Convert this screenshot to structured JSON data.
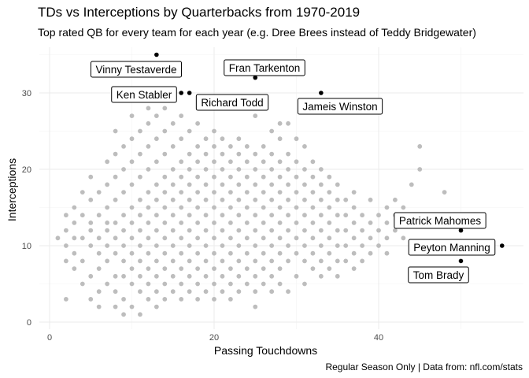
{
  "title": "TDs vs Interceptions by Quarterbacks from 1970-2019",
  "subtitle": "Top rated QB for every team for each year (e.g. Dree Brees instead of Teddy Bridgewater)",
  "caption": "Regular Season Only | Data from: nfl.com/stats",
  "chart_data": {
    "type": "scatter",
    "xlabel": "Passing Touchdowns",
    "ylabel": "Interceptions",
    "xlim": [
      -1,
      58
    ],
    "ylim": [
      -0.5,
      36.5
    ],
    "xticks": [
      0,
      20,
      40
    ],
    "yticks": [
      0,
      10,
      20,
      30
    ],
    "grid": true,
    "point_color": "#bdbdbd",
    "highlight_color": "#000000",
    "points": [
      [
        1,
        11
      ],
      [
        2,
        3
      ],
      [
        2,
        8
      ],
      [
        2,
        10
      ],
      [
        2,
        12
      ],
      [
        2,
        14
      ],
      [
        3,
        7
      ],
      [
        3,
        9
      ],
      [
        3,
        11
      ],
      [
        3,
        13
      ],
      [
        3,
        15
      ],
      [
        4,
        5
      ],
      [
        4,
        8
      ],
      [
        4,
        11
      ],
      [
        4,
        14
      ],
      [
        4,
        17
      ],
      [
        5,
        3
      ],
      [
        5,
        6
      ],
      [
        5,
        10
      ],
      [
        5,
        12
      ],
      [
        5,
        13
      ],
      [
        5,
        16
      ],
      [
        5,
        19
      ],
      [
        6,
        2
      ],
      [
        6,
        4
      ],
      [
        6,
        7
      ],
      [
        6,
        9
      ],
      [
        6,
        11
      ],
      [
        6,
        14
      ],
      [
        6,
        17
      ],
      [
        7,
        5
      ],
      [
        7,
        8
      ],
      [
        7,
        10
      ],
      [
        7,
        12
      ],
      [
        7,
        13
      ],
      [
        7,
        15
      ],
      [
        7,
        18
      ],
      [
        7,
        21
      ],
      [
        8,
        2
      ],
      [
        8,
        4
      ],
      [
        8,
        6
      ],
      [
        8,
        9
      ],
      [
        8,
        11
      ],
      [
        8,
        13
      ],
      [
        8,
        16
      ],
      [
        8,
        19
      ],
      [
        8,
        22
      ],
      [
        8,
        25
      ],
      [
        9,
        1
      ],
      [
        9,
        3
      ],
      [
        9,
        6
      ],
      [
        9,
        8
      ],
      [
        9,
        10
      ],
      [
        9,
        12
      ],
      [
        9,
        14
      ],
      [
        9,
        17
      ],
      [
        9,
        20
      ],
      [
        9,
        23
      ],
      [
        10,
        2
      ],
      [
        10,
        5
      ],
      [
        10,
        7
      ],
      [
        10,
        9
      ],
      [
        10,
        11
      ],
      [
        10,
        13
      ],
      [
        10,
        15
      ],
      [
        10,
        18
      ],
      [
        10,
        21
      ],
      [
        10,
        24
      ],
      [
        10,
        27
      ],
      [
        11,
        1
      ],
      [
        11,
        4
      ],
      [
        11,
        6
      ],
      [
        11,
        8
      ],
      [
        11,
        10
      ],
      [
        11,
        12
      ],
      [
        11,
        14
      ],
      [
        11,
        16
      ],
      [
        11,
        19
      ],
      [
        11,
        22
      ],
      [
        11,
        25
      ],
      [
        12,
        3
      ],
      [
        12,
        5
      ],
      [
        12,
        7
      ],
      [
        12,
        9
      ],
      [
        12,
        11
      ],
      [
        12,
        13
      ],
      [
        12,
        15
      ],
      [
        12,
        17
      ],
      [
        12,
        20
      ],
      [
        12,
        23
      ],
      [
        12,
        26
      ],
      [
        12,
        28
      ],
      [
        13,
        2
      ],
      [
        13,
        4
      ],
      [
        13,
        6
      ],
      [
        13,
        8
      ],
      [
        13,
        10
      ],
      [
        13,
        12
      ],
      [
        13,
        14
      ],
      [
        13,
        16
      ],
      [
        13,
        18
      ],
      [
        13,
        21
      ],
      [
        13,
        24
      ],
      [
        13,
        27
      ],
      [
        14,
        3
      ],
      [
        14,
        5
      ],
      [
        14,
        7
      ],
      [
        14,
        9
      ],
      [
        14,
        11
      ],
      [
        14,
        13
      ],
      [
        14,
        15
      ],
      [
        14,
        17
      ],
      [
        14,
        19
      ],
      [
        14,
        22
      ],
      [
        14,
        25
      ],
      [
        14,
        28
      ],
      [
        15,
        4
      ],
      [
        15,
        6
      ],
      [
        15,
        8
      ],
      [
        15,
        10
      ],
      [
        15,
        12
      ],
      [
        15,
        14
      ],
      [
        15,
        16
      ],
      [
        15,
        18
      ],
      [
        15,
        20
      ],
      [
        15,
        23
      ],
      [
        15,
        26
      ],
      [
        16,
        3
      ],
      [
        16,
        5
      ],
      [
        16,
        7
      ],
      [
        16,
        9
      ],
      [
        16,
        11
      ],
      [
        16,
        13
      ],
      [
        16,
        15
      ],
      [
        16,
        17
      ],
      [
        16,
        19
      ],
      [
        16,
        21
      ],
      [
        16,
        24
      ],
      [
        16,
        27
      ],
      [
        17,
        4
      ],
      [
        17,
        6
      ],
      [
        17,
        8
      ],
      [
        17,
        10
      ],
      [
        17,
        12
      ],
      [
        17,
        14
      ],
      [
        17,
        16
      ],
      [
        17,
        18
      ],
      [
        17,
        20
      ],
      [
        17,
        22
      ],
      [
        17,
        25
      ],
      [
        18,
        3
      ],
      [
        18,
        5
      ],
      [
        18,
        7
      ],
      [
        18,
        9
      ],
      [
        18,
        11
      ],
      [
        18,
        13
      ],
      [
        18,
        15
      ],
      [
        18,
        17
      ],
      [
        18,
        19
      ],
      [
        18,
        21
      ],
      [
        18,
        23
      ],
      [
        18,
        26
      ],
      [
        19,
        4
      ],
      [
        19,
        6
      ],
      [
        19,
        8
      ],
      [
        19,
        10
      ],
      [
        19,
        12
      ],
      [
        19,
        14
      ],
      [
        19,
        16
      ],
      [
        19,
        18
      ],
      [
        19,
        20
      ],
      [
        19,
        22
      ],
      [
        19,
        24
      ],
      [
        20,
        3
      ],
      [
        20,
        5
      ],
      [
        20,
        7
      ],
      [
        20,
        9
      ],
      [
        20,
        11
      ],
      [
        20,
        13
      ],
      [
        20,
        15
      ],
      [
        20,
        17
      ],
      [
        20,
        19
      ],
      [
        20,
        21
      ],
      [
        20,
        23
      ],
      [
        20,
        25
      ],
      [
        21,
        4
      ],
      [
        21,
        6
      ],
      [
        21,
        8
      ],
      [
        21,
        10
      ],
      [
        21,
        12
      ],
      [
        21,
        14
      ],
      [
        21,
        16
      ],
      [
        21,
        18
      ],
      [
        21,
        20
      ],
      [
        21,
        22
      ],
      [
        21,
        24
      ],
      [
        22,
        3
      ],
      [
        22,
        5
      ],
      [
        22,
        7
      ],
      [
        22,
        9
      ],
      [
        22,
        11
      ],
      [
        22,
        13
      ],
      [
        22,
        15
      ],
      [
        22,
        17
      ],
      [
        22,
        19
      ],
      [
        22,
        21
      ],
      [
        22,
        23
      ],
      [
        23,
        4
      ],
      [
        23,
        6
      ],
      [
        23,
        8
      ],
      [
        23,
        10
      ],
      [
        23,
        12
      ],
      [
        23,
        14
      ],
      [
        23,
        16
      ],
      [
        23,
        18
      ],
      [
        23,
        20
      ],
      [
        23,
        22
      ],
      [
        23,
        24
      ],
      [
        24,
        5
      ],
      [
        24,
        7
      ],
      [
        24,
        9
      ],
      [
        24,
        11
      ],
      [
        24,
        13
      ],
      [
        24,
        15
      ],
      [
        24,
        17
      ],
      [
        24,
        19
      ],
      [
        24,
        21
      ],
      [
        24,
        23
      ],
      [
        25,
        2
      ],
      [
        25,
        4
      ],
      [
        25,
        6
      ],
      [
        25,
        8
      ],
      [
        25,
        10
      ],
      [
        25,
        12
      ],
      [
        25,
        14
      ],
      [
        25,
        16
      ],
      [
        25,
        18
      ],
      [
        25,
        20
      ],
      [
        25,
        22
      ],
      [
        25,
        27
      ],
      [
        26,
        5
      ],
      [
        26,
        7
      ],
      [
        26,
        9
      ],
      [
        26,
        11
      ],
      [
        26,
        13
      ],
      [
        26,
        15
      ],
      [
        26,
        17
      ],
      [
        26,
        19
      ],
      [
        26,
        21
      ],
      [
        26,
        23
      ],
      [
        27,
        4
      ],
      [
        27,
        6
      ],
      [
        27,
        8
      ],
      [
        27,
        10
      ],
      [
        27,
        12
      ],
      [
        27,
        14
      ],
      [
        27,
        16
      ],
      [
        27,
        18
      ],
      [
        27,
        20
      ],
      [
        27,
        22
      ],
      [
        27,
        25
      ],
      [
        28,
        5
      ],
      [
        28,
        7
      ],
      [
        28,
        9
      ],
      [
        28,
        11
      ],
      [
        28,
        13
      ],
      [
        28,
        15
      ],
      [
        28,
        17
      ],
      [
        28,
        19
      ],
      [
        28,
        21
      ],
      [
        28,
        24
      ],
      [
        28,
        26
      ],
      [
        29,
        4
      ],
      [
        29,
        8
      ],
      [
        29,
        10
      ],
      [
        29,
        12
      ],
      [
        29,
        14
      ],
      [
        29,
        16
      ],
      [
        29,
        18
      ],
      [
        29,
        20
      ],
      [
        29,
        22
      ],
      [
        29,
        26
      ],
      [
        30,
        6
      ],
      [
        30,
        9
      ],
      [
        30,
        11
      ],
      [
        30,
        13
      ],
      [
        30,
        15
      ],
      [
        30,
        17
      ],
      [
        30,
        19
      ],
      [
        30,
        21
      ],
      [
        30,
        24
      ],
      [
        31,
        5
      ],
      [
        31,
        8
      ],
      [
        31,
        10
      ],
      [
        31,
        12
      ],
      [
        31,
        14
      ],
      [
        31,
        16
      ],
      [
        31,
        18
      ],
      [
        31,
        20
      ],
      [
        31,
        23
      ],
      [
        32,
        7
      ],
      [
        32,
        9
      ],
      [
        32,
        11
      ],
      [
        32,
        13
      ],
      [
        32,
        15
      ],
      [
        32,
        17
      ],
      [
        32,
        19
      ],
      [
        32,
        21
      ],
      [
        33,
        6
      ],
      [
        33,
        8
      ],
      [
        33,
        10
      ],
      [
        33,
        12
      ],
      [
        33,
        14
      ],
      [
        33,
        16
      ],
      [
        33,
        18
      ],
      [
        33,
        20
      ],
      [
        34,
        7
      ],
      [
        34,
        9
      ],
      [
        34,
        11
      ],
      [
        34,
        13
      ],
      [
        34,
        15
      ],
      [
        34,
        17
      ],
      [
        34,
        19
      ],
      [
        35,
        6
      ],
      [
        35,
        8
      ],
      [
        35,
        10
      ],
      [
        35,
        12
      ],
      [
        35,
        14
      ],
      [
        35,
        16
      ],
      [
        35,
        18
      ],
      [
        36,
        8
      ],
      [
        36,
        10
      ],
      [
        36,
        12
      ],
      [
        36,
        14
      ],
      [
        36,
        16
      ],
      [
        37,
        7
      ],
      [
        37,
        9
      ],
      [
        37,
        11
      ],
      [
        37,
        13
      ],
      [
        37,
        15
      ],
      [
        37,
        17
      ],
      [
        38,
        8
      ],
      [
        38,
        10
      ],
      [
        38,
        12
      ],
      [
        38,
        14
      ],
      [
        39,
        9
      ],
      [
        39,
        11
      ],
      [
        39,
        13
      ],
      [
        39,
        16
      ],
      [
        40,
        10
      ],
      [
        40,
        12
      ],
      [
        40,
        14
      ],
      [
        41,
        9
      ],
      [
        41,
        11
      ],
      [
        41,
        13
      ],
      [
        41,
        15
      ],
      [
        42,
        12
      ],
      [
        42,
        14
      ],
      [
        42,
        16
      ],
      [
        43,
        11
      ],
      [
        43,
        13
      ],
      [
        43,
        15
      ],
      [
        44,
        13
      ],
      [
        44,
        18
      ],
      [
        45,
        20
      ],
      [
        45,
        23
      ],
      [
        48,
        17
      ]
    ],
    "highlighted": [
      {
        "name": "Vinny Testaverde",
        "x": 13,
        "y": 35
      },
      {
        "name": "Ken Stabler",
        "x": 16,
        "y": 30
      },
      {
        "name": "Richard Todd",
        "x": 17,
        "y": 30
      },
      {
        "name": "Fran Tarkenton",
        "x": 25,
        "y": 32
      },
      {
        "name": "Jameis Winston",
        "x": 33,
        "y": 30
      },
      {
        "name": "Patrick Mahomes",
        "x": 50,
        "y": 12
      },
      {
        "name": "Peyton Manning",
        "x": 55,
        "y": 10
      },
      {
        "name": "Tom Brady",
        "x": 50,
        "y": 8
      }
    ]
  }
}
